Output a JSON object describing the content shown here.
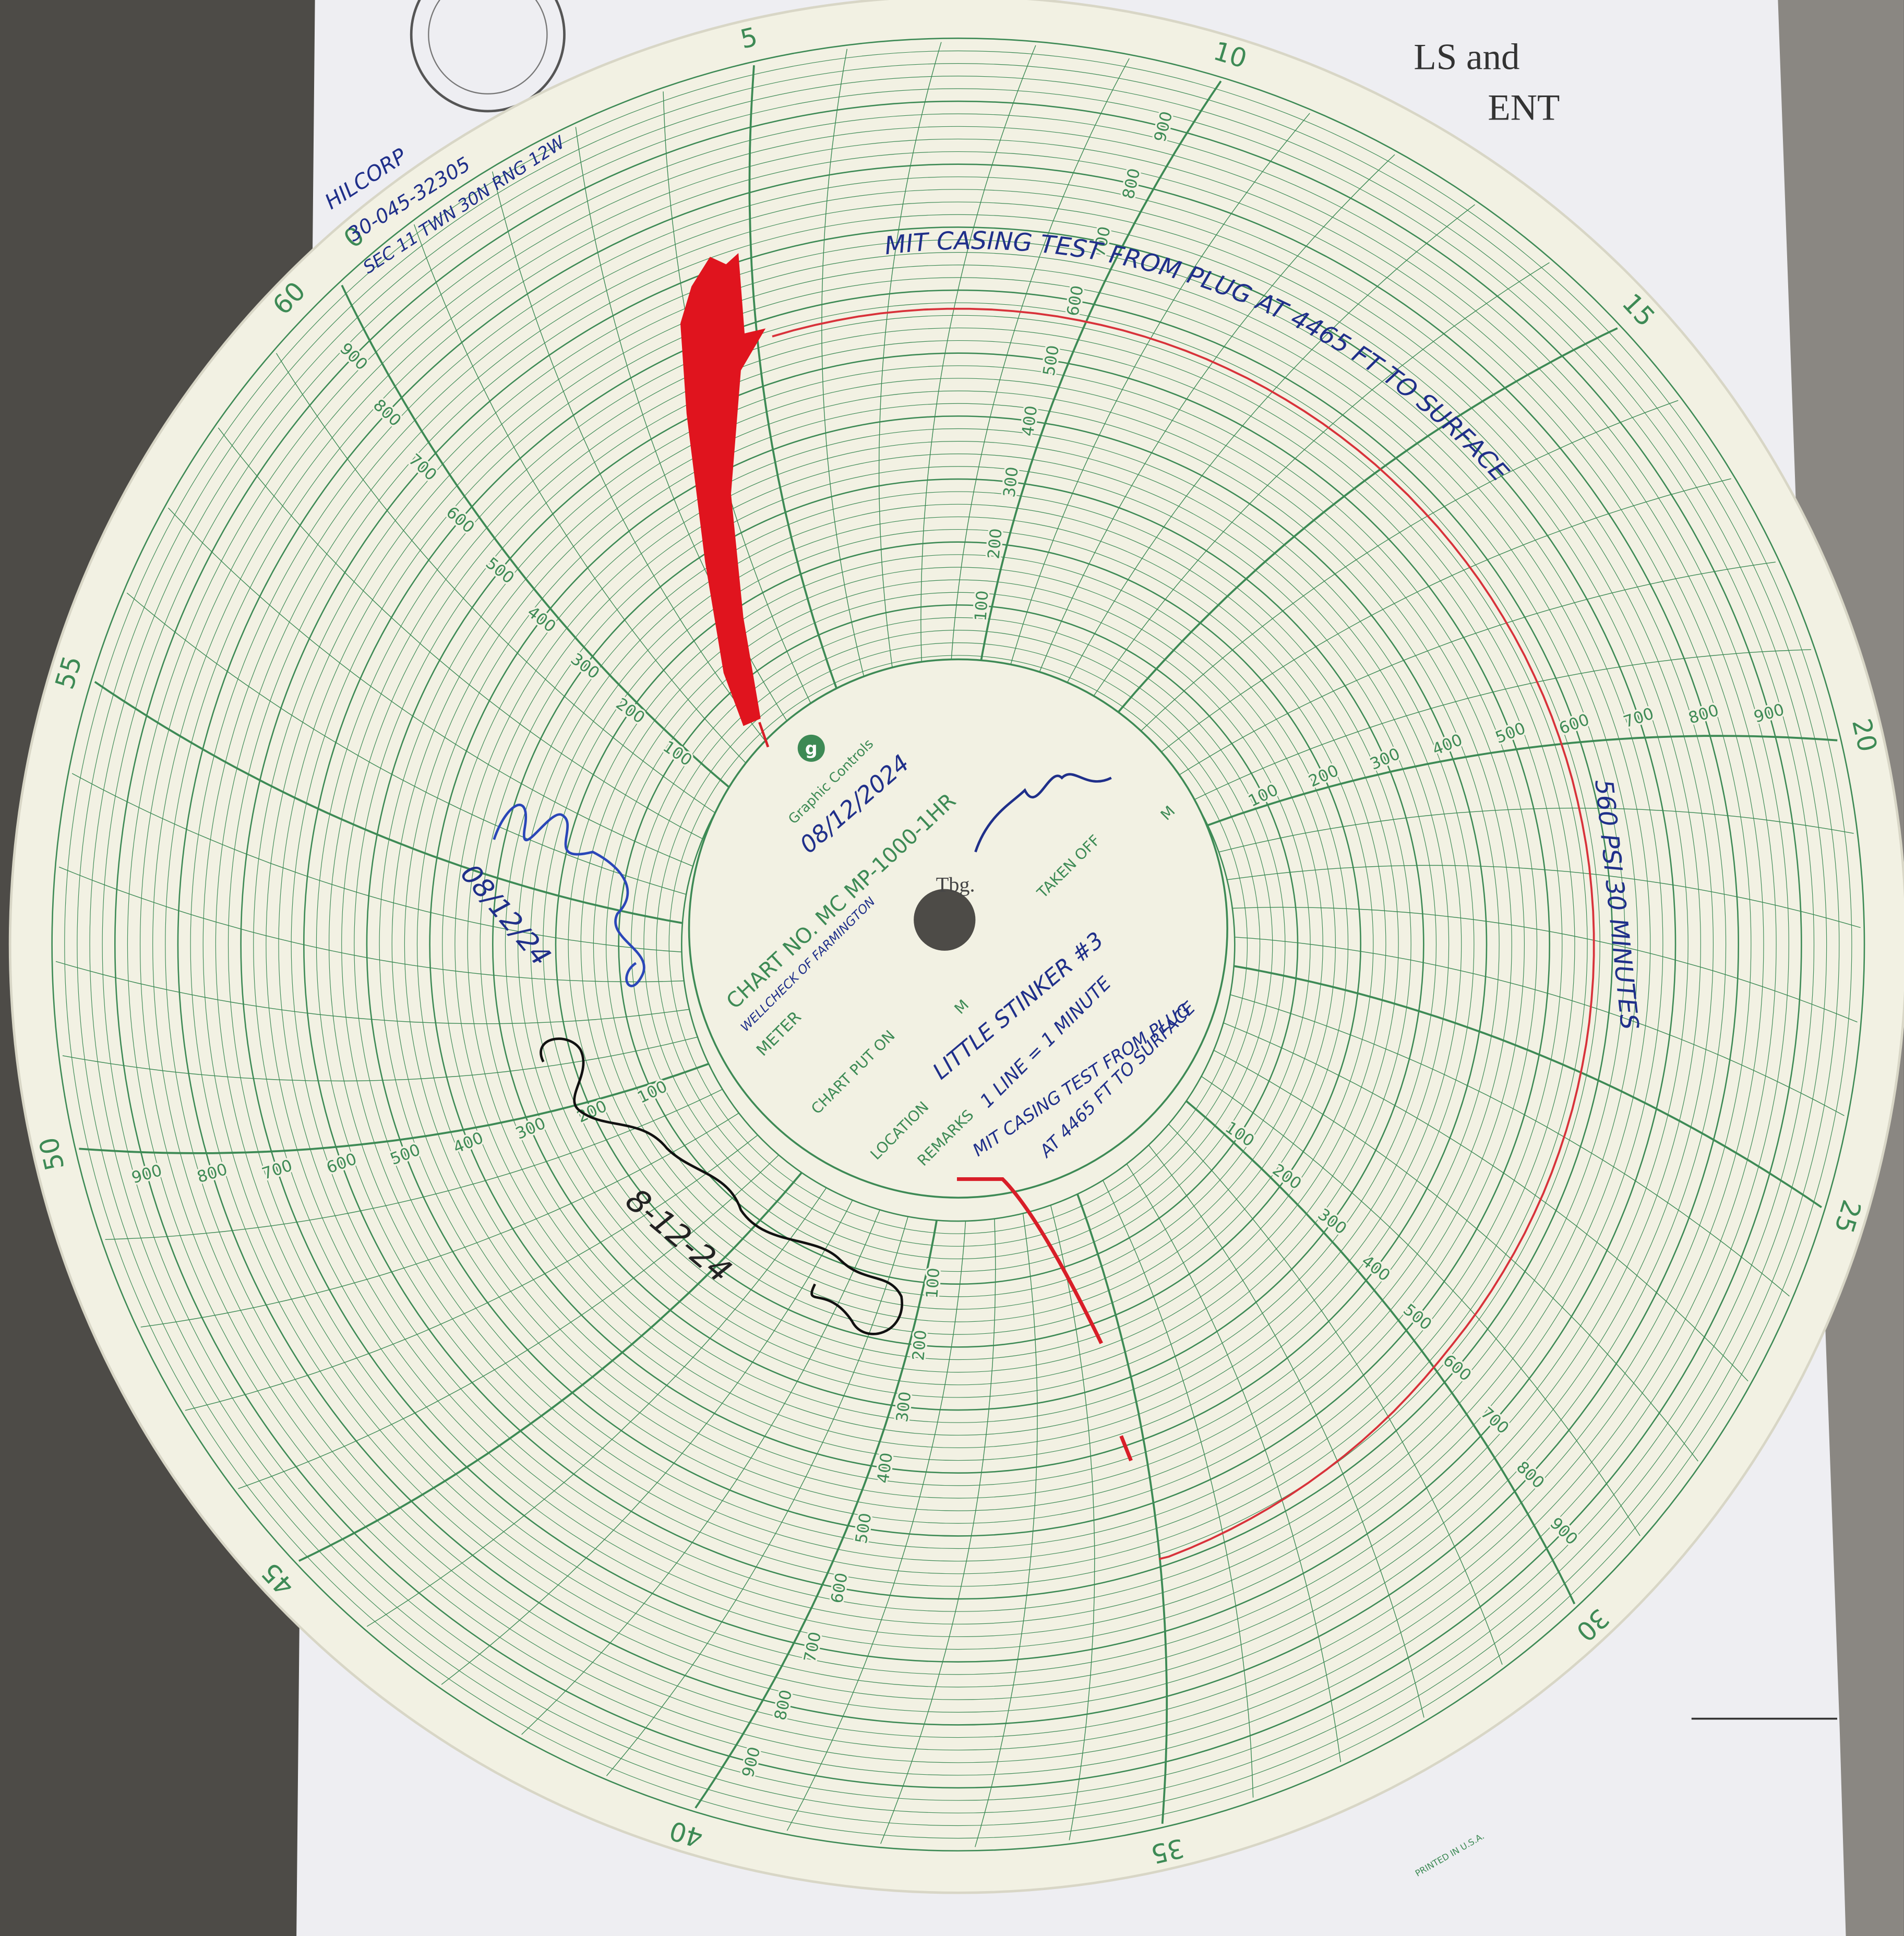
{
  "background": {
    "letterhead": [
      "LS and",
      "ENT"
    ]
  },
  "chart": {
    "minute_labels": [
      60,
      0,
      5,
      10,
      15,
      20,
      25,
      30,
      35,
      40,
      45,
      50,
      55
    ],
    "pressure_scales": [
      [
        100,
        200,
        300,
        400,
        500,
        600,
        700,
        800,
        900
      ],
      [
        100,
        200,
        300,
        400,
        500,
        600,
        700,
        800,
        900
      ],
      [
        100,
        200,
        300,
        400,
        500,
        600,
        700,
        800,
        900
      ],
      [
        100,
        200,
        300,
        400,
        500,
        600,
        700,
        800,
        900
      ],
      [
        100,
        200,
        300,
        400,
        500,
        600,
        700,
        800,
        900
      ],
      [
        100,
        200,
        300,
        400,
        500,
        600,
        700,
        800,
        900
      ]
    ],
    "logo": "g",
    "brand": "Graphic Controls",
    "chart_no": "CHART NO. MC MP-1000-1HR",
    "meter_label": "METER",
    "chart_put_on": "CHART PUT ON",
    "taken_off": "TAKEN OFF",
    "m_marks": [
      "M",
      "M"
    ],
    "location_label": "LOCATION",
    "remarks_label": "REMARKS",
    "tbg": "Tbg.",
    "printed": "PRINTED IN U.S.A."
  },
  "handwriting": {
    "well_info": [
      "HILCORP",
      "30-045-32305",
      "SEC 11 TWN 30N RNG 12W"
    ],
    "test_note": "MIT CASING TEST FROM PLUG AT 4465 FT TO SURFACE",
    "result": "560 PSI 30 MINUTES",
    "date": "08/12/2024",
    "meter": "WELLCHECK OF FARMINGTON",
    "location": "LITTLE STINKER #3",
    "remarks": [
      "1 LINE = 1 MINUTE",
      "MIT CASING TEST FROM PLUG",
      "AT 4465 FT TO SURFACE"
    ],
    "witness_dates": [
      "08/12/24",
      "8-12-24"
    ]
  }
}
